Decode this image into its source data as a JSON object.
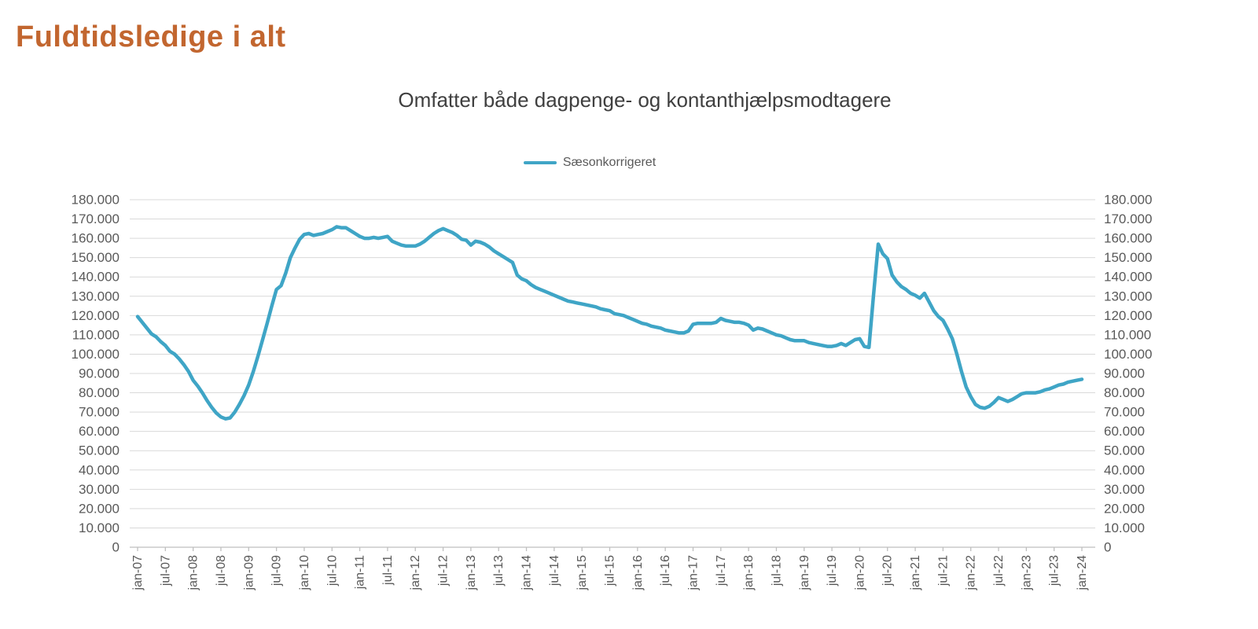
{
  "page": {
    "title": "Fuldtidsledige i alt"
  },
  "chart": {
    "subtitle": "Omfatter både dagpenge- og kontanthjælpsmodtagere",
    "legend_label": "Sæsonkorrigeret"
  },
  "colors": {
    "title": "#C2662F",
    "line": "#3FA5C6",
    "grid": "#D9D9D9",
    "axis_line": "#BFBFBF",
    "axis_text": "#595959",
    "subtitle_text": "#3F3F3F"
  },
  "chart_data": {
    "type": "line",
    "title": "Omfatter både dagpenge- og kontanthjælpsmodtagere",
    "page_title": "Fuldtidsledige i alt",
    "grid": "horizontal",
    "legend_position": "top",
    "y_axis_sides": "both",
    "ylim": [
      0,
      180000
    ],
    "y_tick_step": 10000,
    "y_tick_labels": [
      "0",
      "10.000",
      "20.000",
      "30.000",
      "40.000",
      "50.000",
      "60.000",
      "70.000",
      "80.000",
      "90.000",
      "100.000",
      "110.000",
      "120.000",
      "130.000",
      "140.000",
      "150.000",
      "160.000",
      "170.000",
      "180.000"
    ],
    "x_unit": "month",
    "x_start": "jan-07",
    "x_end": "jan-24",
    "x_tick_every_months": 6,
    "x_tick_labels": [
      "jan-07",
      "jul-07",
      "jan-08",
      "jul-08",
      "jan-09",
      "jul-09",
      "jan-10",
      "jul-10",
      "jan-11",
      "jul-11",
      "jan-12",
      "jul-12",
      "jan-13",
      "jul-13",
      "jan-14",
      "jul-14",
      "jan-15",
      "jul-15",
      "jan-16",
      "jul-16",
      "jan-17",
      "jul-17",
      "jan-18",
      "jul-18",
      "jan-19",
      "jul-19",
      "jan-20",
      "jul-20",
      "jan-21",
      "jul-21",
      "jan-22",
      "jul-22",
      "jan-23",
      "jul-23",
      "jan-24"
    ],
    "series": [
      {
        "name": "Sæsonkorrigeret",
        "color": "#3FA5C6",
        "interval": "monthly (jan-07 .. jan-24)",
        "values": [
          119500,
          116500,
          113500,
          110500,
          109000,
          106500,
          104500,
          101500,
          100000,
          97500,
          94500,
          91000,
          86500,
          83500,
          80000,
          76000,
          72500,
          69500,
          67500,
          66500,
          67000,
          70000,
          74000,
          78500,
          84000,
          91000,
          99000,
          107500,
          116000,
          125000,
          133500,
          135500,
          142000,
          150000,
          155000,
          159500,
          162000,
          162500,
          161500,
          162000,
          162500,
          163500,
          164500,
          166000,
          165500,
          165500,
          164000,
          162500,
          161000,
          160000,
          160000,
          160500,
          160000,
          160500,
          161000,
          158500,
          157500,
          156500,
          156000,
          156000,
          156000,
          157000,
          158500,
          160500,
          162500,
          164000,
          165000,
          164000,
          163000,
          161500,
          159500,
          159000,
          156500,
          158500,
          158000,
          157000,
          155500,
          153500,
          152000,
          150500,
          149000,
          147500,
          141000,
          139000,
          138000,
          136000,
          134500,
          133500,
          132500,
          131500,
          130500,
          129500,
          128500,
          127500,
          127000,
          126500,
          126000,
          125500,
          125000,
          124500,
          123500,
          123000,
          122500,
          121000,
          120500,
          120000,
          119000,
          118000,
          117000,
          116000,
          115500,
          114500,
          114000,
          113500,
          112500,
          112000,
          111500,
          111000,
          111000,
          112000,
          115500,
          116000,
          116000,
          116000,
          116000,
          116500,
          118500,
          117500,
          117000,
          116500,
          116500,
          116000,
          115000,
          112500,
          113500,
          113000,
          112000,
          111000,
          110000,
          109500,
          108500,
          107500,
          107000,
          107000,
          107000,
          106000,
          105500,
          105000,
          104500,
          104000,
          104000,
          104500,
          105500,
          104500,
          106000,
          107500,
          108000,
          104000,
          103500,
          131000,
          157000,
          152000,
          149500,
          141000,
          137500,
          135000,
          133500,
          131500,
          130500,
          129000,
          131500,
          127000,
          122500,
          119500,
          117500,
          113000,
          108000,
          100000,
          91000,
          83000,
          78000,
          74000,
          72500,
          72000,
          73000,
          75000,
          77500,
          76500,
          75500,
          76500,
          78000,
          79500,
          80000,
          80000,
          80000,
          80500,
          81500,
          82000,
          83000,
          84000,
          84500,
          85500,
          86000,
          86500,
          87000
        ]
      }
    ]
  }
}
